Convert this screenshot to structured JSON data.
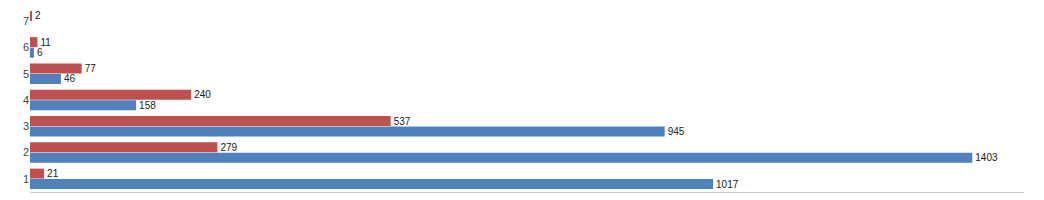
{
  "chart_data": {
    "type": "bar",
    "orientation": "horizontal",
    "categories": [
      1,
      2,
      3,
      4,
      5,
      6,
      7
    ],
    "series": [
      {
        "color": "#C0504D",
        "values": [
          21,
          279,
          537,
          240,
          77,
          11,
          2
        ]
      },
      {
        "color": "#4F81BD",
        "values": [
          1017,
          1403,
          945,
          158,
          46,
          6,
          0
        ],
        "value_labels": [
          "1017",
          "1403",
          "945",
          "158",
          "46",
          "6",
          null
        ]
      }
    ],
    "xlim": [
      0,
      1480
    ],
    "data_labels": true,
    "tick_labels": "y",
    "grid": false
  }
}
